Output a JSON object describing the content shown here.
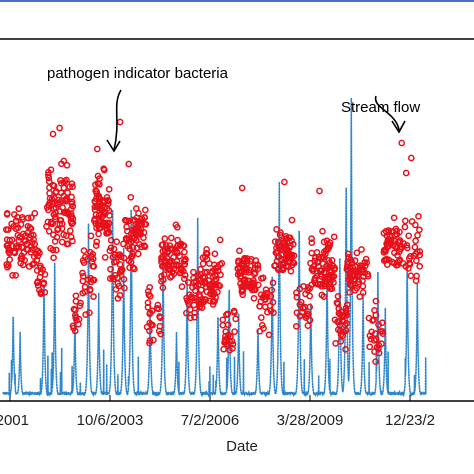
{
  "chart_data": {
    "type": "scatter",
    "title": "",
    "xlabel": "Date",
    "ylabel": "",
    "xtick_labels": [
      "2001",
      "10/6/2003",
      "7/2/2006",
      "3/28/2009",
      "12/23/2"
    ],
    "annotations": [
      {
        "text": "pathogen indicator bacteria",
        "series": "bacteria"
      },
      {
        "text": "Stream flow",
        "series": "flow"
      }
    ],
    "series": [
      {
        "key": "bacteria",
        "name": "pathogen indicator bacteria",
        "color": "#e8101a",
        "marker": "open-circle",
        "clusters": [
          {
            "from": "2000-12-01",
            "to": "2001-09-30",
            "low": 0.35,
            "high": 0.7,
            "n": 80
          },
          {
            "from": "2001-10-01",
            "to": "2001-12-31",
            "low": 0.25,
            "high": 0.55,
            "n": 20
          },
          {
            "from": "2002-01-01",
            "to": "2002-09-30",
            "low": 0.4,
            "high": 0.86,
            "n": 95
          },
          {
            "from": "2002-10-01",
            "to": "2002-12-31",
            "low": 0.15,
            "high": 0.4,
            "n": 15
          },
          {
            "from": "2003-01-01",
            "to": "2003-04-30",
            "low": 0.25,
            "high": 0.6,
            "n": 30
          },
          {
            "from": "2003-05-01",
            "to": "2003-09-30",
            "low": 0.45,
            "high": 0.8,
            "n": 75
          },
          {
            "from": "2003-10-01",
            "to": "2004-02-28",
            "low": 0.3,
            "high": 0.58,
            "n": 35
          },
          {
            "from": "2004-03-01",
            "to": "2004-09-30",
            "low": 0.4,
            "high": 0.68,
            "n": 70
          },
          {
            "from": "2004-10-01",
            "to": "2005-02-28",
            "low": 0.15,
            "high": 0.4,
            "n": 25
          },
          {
            "from": "2005-03-01",
            "to": "2005-10-31",
            "low": 0.3,
            "high": 0.62,
            "n": 80
          },
          {
            "from": "2005-11-01",
            "to": "2006-02-28",
            "low": 0.2,
            "high": 0.45,
            "n": 22
          },
          {
            "from": "2006-03-01",
            "to": "2006-10-31",
            "low": 0.25,
            "high": 0.55,
            "n": 75
          },
          {
            "from": "2006-11-01",
            "to": "2007-03-31",
            "low": 0.1,
            "high": 0.35,
            "n": 25
          },
          {
            "from": "2007-04-01",
            "to": "2007-10-31",
            "low": 0.3,
            "high": 0.52,
            "n": 70
          },
          {
            "from": "2007-11-01",
            "to": "2008-03-31",
            "low": 0.2,
            "high": 0.45,
            "n": 28
          },
          {
            "from": "2008-04-01",
            "to": "2008-10-31",
            "low": 0.35,
            "high": 0.6,
            "n": 75
          },
          {
            "from": "2008-11-01",
            "to": "2009-03-31",
            "low": 0.15,
            "high": 0.45,
            "n": 28
          },
          {
            "from": "2009-04-01",
            "to": "2009-11-30",
            "low": 0.3,
            "high": 0.58,
            "n": 80
          },
          {
            "from": "2009-12-01",
            "to": "2010-03-31",
            "low": 0.1,
            "high": 0.4,
            "n": 30
          },
          {
            "from": "2010-04-01",
            "to": "2010-10-31",
            "low": 0.3,
            "high": 0.52,
            "n": 65
          },
          {
            "from": "2010-11-01",
            "to": "2011-03-31",
            "low": 0.1,
            "high": 0.35,
            "n": 25
          },
          {
            "from": "2011-04-01",
            "to": "2011-09-30",
            "low": 0.4,
            "high": 0.62,
            "n": 55
          },
          {
            "from": "2011-10-01",
            "to": "2012-03-31",
            "low": 0.3,
            "high": 0.72,
            "n": 30
          }
        ],
        "outliers": [
          {
            "date": "2002-03-15",
            "y": 0.88
          },
          {
            "date": "2002-05-20",
            "y": 0.9
          },
          {
            "date": "2002-07-01",
            "y": 0.79
          },
          {
            "date": "2003-06-01",
            "y": 0.83
          },
          {
            "date": "2003-08-10",
            "y": 0.76
          },
          {
            "date": "2004-01-15",
            "y": 0.92
          },
          {
            "date": "2004-04-10",
            "y": 0.78
          },
          {
            "date": "2007-05-20",
            "y": 0.7
          },
          {
            "date": "2008-07-15",
            "y": 0.72
          },
          {
            "date": "2009-07-01",
            "y": 0.69
          },
          {
            "date": "2011-10-01",
            "y": 0.85
          },
          {
            "date": "2011-11-15",
            "y": 0.75
          },
          {
            "date": "2012-01-05",
            "y": 0.8
          }
        ]
      },
      {
        "key": "flow",
        "name": "Stream flow",
        "color": "#2e86c8",
        "marker": "dotted-line",
        "baseline": 0.01,
        "peaks": [
          {
            "date": "2001-02-10",
            "y": 0.3
          },
          {
            "date": "2001-04-20",
            "y": 0.22
          },
          {
            "date": "2001-12-15",
            "y": 0.42
          },
          {
            "date": "2002-04-01",
            "y": 0.45
          },
          {
            "date": "2002-10-20",
            "y": 0.28
          },
          {
            "date": "2003-03-05",
            "y": 0.58
          },
          {
            "date": "2003-06-15",
            "y": 0.35
          },
          {
            "date": "2003-11-01",
            "y": 0.7
          },
          {
            "date": "2004-02-20",
            "y": 0.5
          },
          {
            "date": "2004-05-05",
            "y": 0.7
          },
          {
            "date": "2004-11-10",
            "y": 0.32
          },
          {
            "date": "2005-03-20",
            "y": 0.5
          },
          {
            "date": "2005-08-01",
            "y": 0.22
          },
          {
            "date": "2005-11-15",
            "y": 0.4
          },
          {
            "date": "2006-03-01",
            "y": 0.6
          },
          {
            "date": "2006-09-20",
            "y": 0.3
          },
          {
            "date": "2007-01-10",
            "y": 0.4
          },
          {
            "date": "2007-04-15",
            "y": 0.28
          },
          {
            "date": "2007-10-25",
            "y": 0.25
          },
          {
            "date": "2008-03-15",
            "y": 0.45
          },
          {
            "date": "2008-05-25",
            "y": 0.72
          },
          {
            "date": "2008-12-10",
            "y": 0.62
          },
          {
            "date": "2009-04-05",
            "y": 0.35
          },
          {
            "date": "2009-09-15",
            "y": 0.45
          },
          {
            "date": "2010-01-20",
            "y": 0.52
          },
          {
            "date": "2010-03-25",
            "y": 0.78
          },
          {
            "date": "2010-05-15",
            "y": 1.0
          },
          {
            "date": "2010-09-10",
            "y": 0.35
          },
          {
            "date": "2011-02-05",
            "y": 0.42
          },
          {
            "date": "2011-04-20",
            "y": 0.3
          },
          {
            "date": "2011-11-25",
            "y": 0.5
          },
          {
            "date": "2012-03-05",
            "y": 0.38
          }
        ]
      }
    ]
  }
}
